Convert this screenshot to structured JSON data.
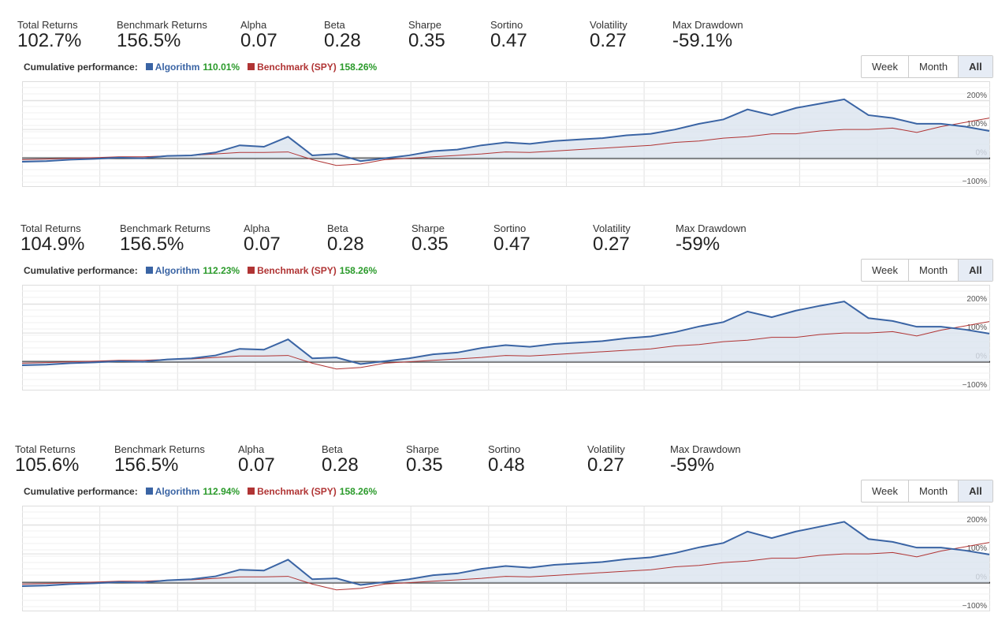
{
  "panels": [
    {
      "stats": [
        {
          "label": "Total Returns",
          "value": "102.7%"
        },
        {
          "label": "Benchmark Returns",
          "value": "156.5%"
        },
        {
          "label": "Alpha",
          "value": "0.07"
        },
        {
          "label": "Beta",
          "value": "0.28"
        },
        {
          "label": "Sharpe",
          "value": "0.35"
        },
        {
          "label": "Sortino",
          "value": "0.47"
        },
        {
          "label": "Volatility",
          "value": "0.27"
        },
        {
          "label": "Max Drawdown",
          "value": "-59.1%"
        }
      ],
      "legend": {
        "title": "Cumulative performance:",
        "algorithm_value": "110.01%",
        "benchmark_value": "158.26%"
      },
      "buttons": [
        "Week",
        "Month",
        "All"
      ],
      "chart_data": {
        "type": "line",
        "ylim": [
          -100,
          268
        ],
        "yticks": [
          {
            "value": -100,
            "label": "−100%"
          },
          {
            "value": 0,
            "label": "0%"
          },
          {
            "value": 100,
            "label": "100%"
          },
          {
            "value": 200,
            "label": "200%"
          }
        ],
        "series": [
          {
            "name": "Algorithm",
            "color": "#3a64a4",
            "values": [
              -12,
              -10,
              -5,
              -2,
              2,
              0,
              8,
              10,
              20,
              45,
              40,
              75,
              10,
              15,
              -10,
              0,
              10,
              25,
              30,
              45,
              55,
              50,
              60,
              65,
              70,
              80,
              85,
              100,
              120,
              135,
              170,
              150,
              175,
              190,
              205,
              150,
              140,
              120,
              120,
              110,
              95
            ]
          },
          {
            "name": "Benchmark (SPY)",
            "color": "#b03434",
            "values": [
              -5,
              -3,
              0,
              2,
              5,
              5,
              8,
              10,
              15,
              20,
              20,
              22,
              -5,
              -25,
              -20,
              -5,
              0,
              5,
              10,
              15,
              22,
              20,
              25,
              30,
              35,
              40,
              45,
              55,
              60,
              70,
              75,
              85,
              85,
              95,
              100,
              100,
              105,
              90,
              110,
              125,
              140
            ]
          }
        ]
      }
    },
    {
      "stats": [
        {
          "label": "Total Returns",
          "value": "104.9%"
        },
        {
          "label": "Benchmark Returns",
          "value": "156.5%"
        },
        {
          "label": "Alpha",
          "value": "0.07"
        },
        {
          "label": "Beta",
          "value": "0.28"
        },
        {
          "label": "Sharpe",
          "value": "0.35"
        },
        {
          "label": "Sortino",
          "value": "0.47"
        },
        {
          "label": "Volatility",
          "value": "0.27"
        },
        {
          "label": "Max Drawdown",
          "value": "-59%"
        }
      ],
      "legend": {
        "title": "Cumulative performance:",
        "algorithm_value": "112.23%",
        "benchmark_value": "158.26%"
      },
      "buttons": [
        "Week",
        "Month",
        "All"
      ],
      "chart_data": {
        "type": "line",
        "ylim": [
          -100,
          268
        ],
        "yticks": [
          {
            "value": -100,
            "label": "−100%"
          },
          {
            "value": 0,
            "label": "0%"
          },
          {
            "value": 100,
            "label": "100%"
          },
          {
            "value": 200,
            "label": "200%"
          }
        ],
        "series": [
          {
            "name": "Algorithm",
            "color": "#3a64a4",
            "values": [
              -12,
              -10,
              -5,
              -2,
              2,
              0,
              8,
              12,
              22,
              45,
              42,
              78,
              12,
              15,
              -8,
              2,
              12,
              26,
              32,
              48,
              58,
              52,
              62,
              67,
              72,
              82,
              88,
              103,
              123,
              138,
              175,
              155,
              178,
              195,
              210,
              152,
              142,
              122,
              122,
              112,
              98
            ]
          },
          {
            "name": "Benchmark (SPY)",
            "color": "#b03434",
            "values": [
              -5,
              -3,
              0,
              2,
              5,
              5,
              8,
              10,
              15,
              20,
              20,
              22,
              -5,
              -25,
              -20,
              -5,
              0,
              5,
              10,
              15,
              22,
              20,
              25,
              30,
              35,
              40,
              45,
              55,
              60,
              70,
              75,
              85,
              85,
              95,
              100,
              100,
              105,
              90,
              110,
              125,
              140
            ]
          }
        ]
      }
    },
    {
      "stats": [
        {
          "label": "Total Returns",
          "value": "105.6%"
        },
        {
          "label": "Benchmark Returns",
          "value": "156.5%"
        },
        {
          "label": "Alpha",
          "value": "0.07"
        },
        {
          "label": "Beta",
          "value": "0.28"
        },
        {
          "label": "Sharpe",
          "value": "0.35"
        },
        {
          "label": "Sortino",
          "value": "0.48"
        },
        {
          "label": "Volatility",
          "value": "0.27"
        },
        {
          "label": "Max Drawdown",
          "value": "-59%"
        }
      ],
      "legend": {
        "title": "Cumulative performance:",
        "algorithm_value": "112.94%",
        "benchmark_value": "158.26%"
      },
      "buttons": [
        "Week",
        "Month",
        "All"
      ],
      "chart_data": {
        "type": "line",
        "ylim": [
          -100,
          268
        ],
        "yticks": [
          {
            "value": -100,
            "label": "−100%"
          },
          {
            "value": 0,
            "label": "0%"
          },
          {
            "value": 100,
            "label": "100%"
          },
          {
            "value": 200,
            "label": "200%"
          }
        ],
        "series": [
          {
            "name": "Algorithm",
            "color": "#3a64a4",
            "values": [
              -12,
              -10,
              -5,
              -2,
              2,
              0,
              8,
              12,
              22,
              45,
              42,
              80,
              12,
              15,
              -8,
              2,
              12,
              26,
              32,
              48,
              58,
              52,
              62,
              67,
              72,
              82,
              88,
              103,
              123,
              138,
              178,
              155,
              178,
              195,
              212,
              152,
              142,
              122,
              122,
              112,
              98
            ]
          },
          {
            "name": "Benchmark (SPY)",
            "color": "#b03434",
            "values": [
              -5,
              -3,
              0,
              2,
              5,
              5,
              8,
              10,
              15,
              20,
              20,
              22,
              -5,
              -25,
              -20,
              -5,
              0,
              5,
              10,
              15,
              22,
              20,
              25,
              30,
              35,
              40,
              45,
              55,
              60,
              70,
              75,
              85,
              85,
              95,
              100,
              100,
              105,
              90,
              110,
              125,
              140
            ]
          }
        ]
      }
    }
  ]
}
